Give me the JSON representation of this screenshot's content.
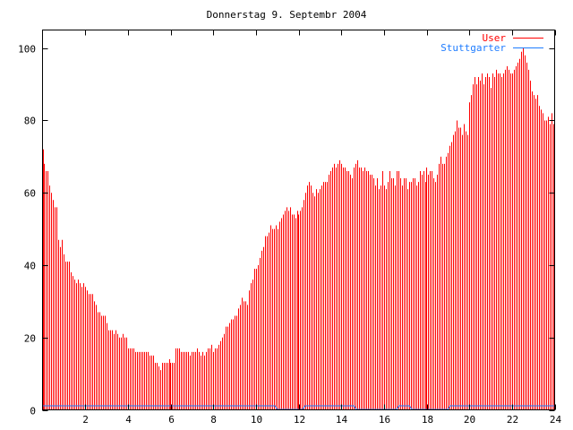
{
  "chart_data": {
    "type": "bar",
    "title": "Donnerstag 9. Septembr 2004",
    "xlabel": "",
    "ylabel": "",
    "xlim": [
      0,
      24
    ],
    "ylim": [
      0,
      105
    ],
    "xticks": [
      2,
      4,
      6,
      8,
      10,
      12,
      14,
      16,
      18,
      20,
      22,
      24
    ],
    "yticks": [
      0,
      20,
      40,
      60,
      80,
      100
    ],
    "grid": false,
    "legend_position": "top-right",
    "x_step_hours": 0.0833333,
    "series": [
      {
        "name": "User",
        "style": "impulses",
        "color": "#ff0000",
        "values": [
          72,
          68,
          66,
          66,
          62,
          60,
          58,
          56,
          56,
          47,
          45,
          47,
          43,
          41,
          41,
          41,
          38,
          37,
          36,
          35,
          36,
          35,
          34,
          35,
          34,
          33,
          32,
          32,
          32,
          30,
          29,
          27,
          27,
          26,
          26,
          26,
          24,
          22,
          22,
          22,
          21,
          22,
          21,
          20,
          20,
          21,
          20,
          20,
          17,
          17,
          17,
          17,
          16,
          16,
          16,
          16,
          16,
          16,
          16,
          16,
          15,
          15,
          15,
          13,
          13,
          12,
          11,
          13,
          13,
          13,
          13,
          14,
          13,
          13,
          13,
          17,
          17,
          17,
          16,
          16,
          16,
          16,
          16,
          15,
          16,
          16,
          16,
          17,
          16,
          15,
          16,
          15,
          16,
          17,
          17,
          18,
          16,
          17,
          17,
          18,
          19,
          20,
          21,
          23,
          23,
          24,
          25,
          25,
          26,
          26,
          28,
          29,
          31,
          30,
          30,
          29,
          33,
          35,
          36,
          39,
          39,
          40,
          42,
          44,
          45,
          48,
          48,
          49,
          51,
          50,
          50,
          51,
          50,
          52,
          53,
          54,
          55,
          56,
          55,
          56,
          54,
          54,
          53,
          55,
          54,
          55,
          56,
          58,
          60,
          62,
          63,
          62,
          60,
          59,
          61,
          60,
          61,
          62,
          63,
          63,
          63,
          65,
          66,
          67,
          68,
          67,
          68,
          69,
          68,
          67,
          67,
          66,
          66,
          65,
          64,
          67,
          68,
          69,
          67,
          67,
          66,
          67,
          66,
          66,
          65,
          65,
          64,
          62,
          64,
          61,
          62,
          66,
          62,
          61,
          63,
          66,
          64,
          64,
          62,
          66,
          66,
          64,
          62,
          64,
          64,
          61,
          63,
          63,
          64,
          64,
          62,
          63,
          66,
          65,
          66,
          63,
          67,
          65,
          66,
          66,
          64,
          63,
          65,
          68,
          70,
          68,
          68,
          70,
          71,
          73,
          74,
          76,
          77,
          80,
          78,
          78,
          76,
          79,
          77,
          76,
          85,
          87,
          90,
          92,
          90,
          92,
          91,
          93,
          90,
          92,
          93,
          92,
          89,
          93,
          92,
          94,
          93,
          93,
          92,
          93,
          94,
          95,
          94,
          93,
          93,
          94,
          95,
          96,
          97,
          99,
          100,
          98,
          96,
          94,
          91,
          88,
          87,
          86,
          87,
          84,
          83,
          82,
          80,
          80,
          81,
          79,
          82,
          79
        ]
      },
      {
        "name": "Stuttgarter",
        "style": "lines",
        "color": "#1e7cff",
        "points": [
          [
            0,
            1
          ],
          [
            10.9,
            1
          ],
          [
            11,
            0
          ],
          [
            12.2,
            0
          ],
          [
            12.3,
            1
          ],
          [
            14.6,
            1
          ],
          [
            14.7,
            0
          ],
          [
            16.6,
            0
          ],
          [
            16.7,
            1
          ],
          [
            17.2,
            1
          ],
          [
            17.3,
            0
          ],
          [
            19,
            0
          ],
          [
            19.1,
            1
          ],
          [
            24,
            1
          ]
        ]
      }
    ]
  }
}
